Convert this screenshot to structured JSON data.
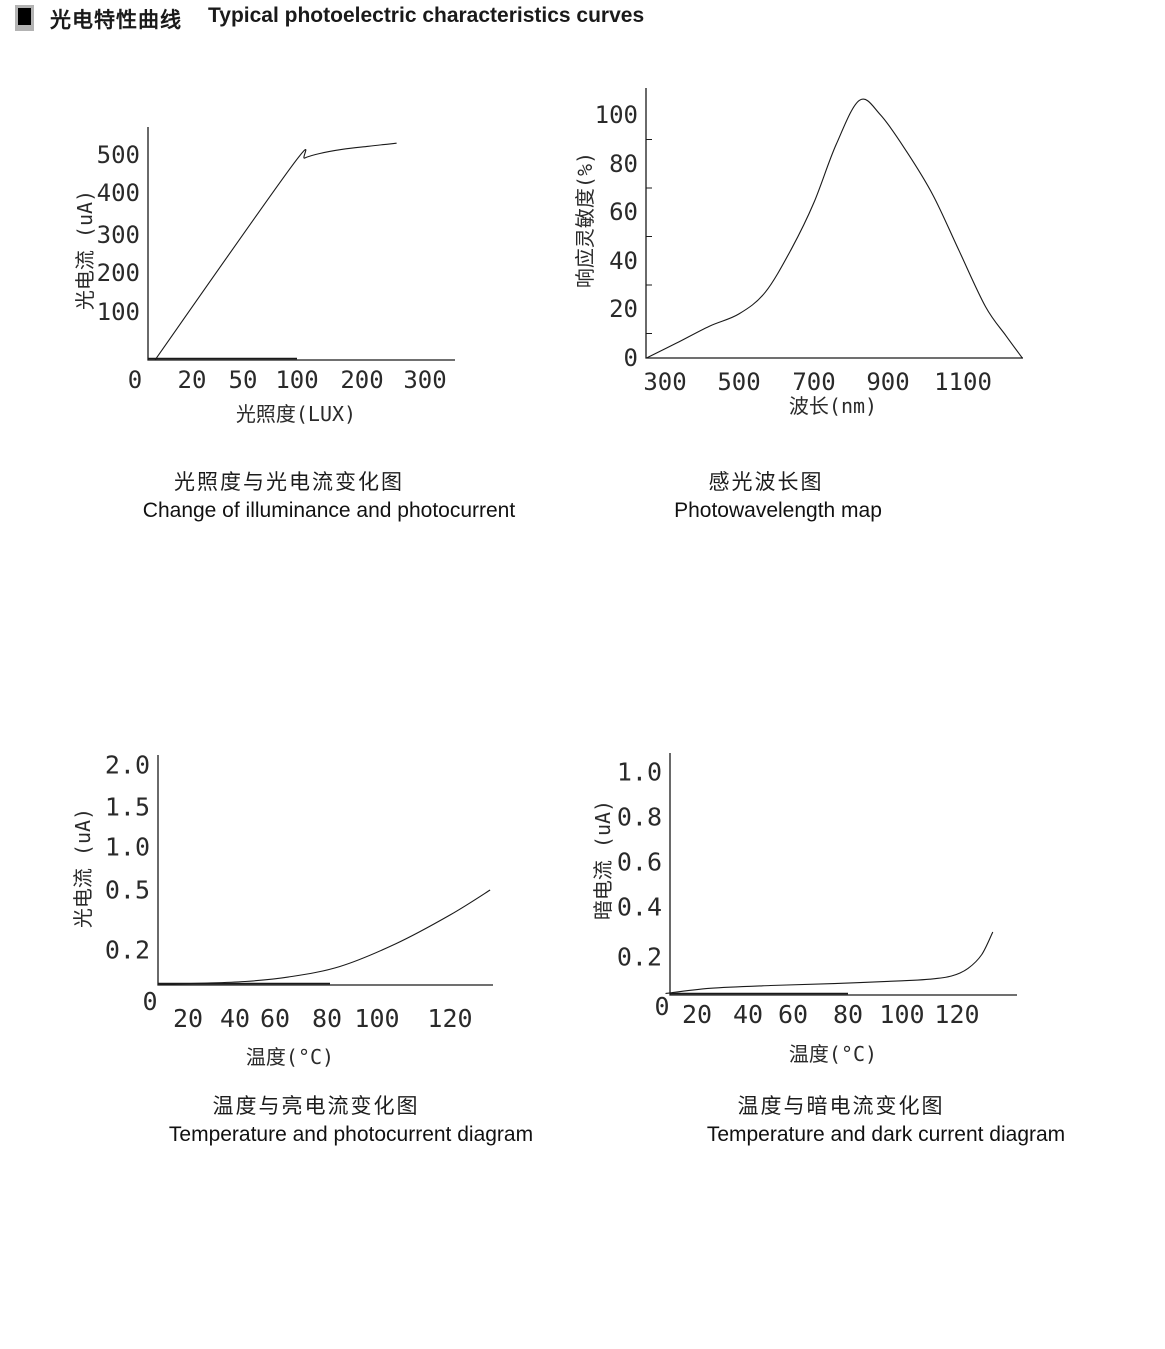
{
  "colors": {
    "ink": "#1a1a1a",
    "bullet_bg": "#b3b3b3",
    "bullet_fg": "#000000",
    "background": "#ffffff"
  },
  "header": {
    "bullet_icon": "black-square-bullet",
    "title_cn": "光电特性曲线",
    "title_en": "Typical photoelectric characteristics curves"
  },
  "chart_data": [
    {
      "type": "line",
      "id": "illuminance-photocurrent",
      "title_cn": "光照度与光电流变化图",
      "title_en": "Change of illuminance and photocurrent",
      "xlabel": "光照度(LUX)",
      "ylabel": "光电流 (uA)",
      "x_ticks": [
        0,
        20,
        50,
        100,
        200,
        300
      ],
      "x_tick_labels": [
        "0",
        "20",
        "50",
        "100",
        "200",
        "300"
      ],
      "y_ticks": [
        100,
        200,
        300,
        400,
        500
      ],
      "y_tick_labels": [
        "100",
        "200",
        "300",
        "400",
        "500"
      ],
      "xlim": [
        0,
        330
      ],
      "ylim": [
        0,
        570
      ],
      "grid": false,
      "legend": "none",
      "axis_note": "tick labels evenly spaced, nonlinear x scale",
      "series": [
        {
          "name": "photocurrent",
          "points": [
            [
              7,
              0
            ],
            [
              95,
              470
            ],
            [
              112,
              492
            ],
            [
              135,
              504
            ],
            [
              170,
              515
            ],
            [
              210,
              523
            ],
            [
              255,
              531
            ]
          ]
        }
      ]
    },
    {
      "type": "line",
      "id": "spectral-response",
      "title_cn": "感光波长图",
      "title_en": "Photowavelength map",
      "xlabel": "波长(nm)",
      "ylabel": "响应灵敏度(%)",
      "x_ticks": [
        300,
        500,
        700,
        900,
        1100
      ],
      "x_tick_labels": [
        "300",
        "500",
        "700",
        "900",
        "1100"
      ],
      "y_ticks": [
        0,
        20,
        40,
        60,
        80,
        100
      ],
      "y_tick_labels": [
        "0",
        "20",
        "40",
        "60",
        "80",
        "100"
      ],
      "xlim": [
        250,
        1260
      ],
      "ylim": [
        0,
        110
      ],
      "grid": false,
      "legend": "none",
      "series": [
        {
          "name": "relative-sensitivity",
          "points": [
            [
              250,
              0
            ],
            [
              330,
              6
            ],
            [
              420,
              13
            ],
            [
              500,
              18
            ],
            [
              570,
              27
            ],
            [
              640,
              45
            ],
            [
              700,
              64
            ],
            [
              760,
              88
            ],
            [
              823,
              106
            ],
            [
              880,
              100
            ],
            [
              950,
              85
            ],
            [
              1020,
              67
            ],
            [
              1090,
              44
            ],
            [
              1160,
              21
            ],
            [
              1215,
              9
            ],
            [
              1258,
              0
            ]
          ]
        }
      ]
    },
    {
      "type": "line",
      "id": "temperature-photocurrent",
      "title_cn": "温度与亮电流变化图",
      "title_en": "Temperature and photocurrent diagram",
      "xlabel": "温度(°C)",
      "ylabel": "光电流 (uA)",
      "x_ticks": [
        0,
        20,
        40,
        60,
        80,
        100,
        120
      ],
      "x_tick_labels": [
        "0",
        "20",
        "40",
        "60",
        "80",
        "100",
        "120"
      ],
      "y_ticks": [
        0.2,
        0.5,
        1.0,
        1.5,
        2.0
      ],
      "y_tick_labels": [
        "0.2",
        "0.5",
        "1.0",
        "1.5",
        "2.0"
      ],
      "xlim": [
        0,
        131
      ],
      "ylim": [
        0,
        2.0
      ],
      "grid": false,
      "legend": "none",
      "series": [
        {
          "name": "light-current",
          "points": [
            [
              5,
              0.004
            ],
            [
              25,
              0.01
            ],
            [
              45,
              0.02
            ],
            [
              65,
              0.045
            ],
            [
              85,
              0.105
            ],
            [
              105,
              0.23
            ],
            [
              120,
              0.375
            ],
            [
              131,
              0.5
            ]
          ]
        }
      ]
    },
    {
      "type": "line",
      "id": "temperature-darkcurrent",
      "title_cn": "温度与暗电流变化图",
      "title_en": "Temperature and dark current diagram",
      "xlabel": "温度(°C)",
      "ylabel": "暗电流 (uA)",
      "x_ticks": [
        0,
        20,
        40,
        60,
        80,
        100,
        120
      ],
      "x_tick_labels": [
        "0",
        "20",
        "40",
        "60",
        "80",
        "100",
        "120"
      ],
      "y_ticks": [
        0.2,
        0.4,
        0.6,
        0.8,
        1.0
      ],
      "y_tick_labels": [
        "0.2",
        "0.4",
        "0.6",
        "0.8",
        "1.0"
      ],
      "xlim": [
        0,
        133
      ],
      "ylim": [
        0,
        1.0
      ],
      "grid": false,
      "legend": "none",
      "series": [
        {
          "name": "dark-current",
          "points": [
            [
              2,
              0.008
            ],
            [
              25,
              0.035
            ],
            [
              50,
              0.05
            ],
            [
              75,
              0.06
            ],
            [
              100,
              0.075
            ],
            [
              110,
              0.083
            ],
            [
              118,
              0.1
            ],
            [
              124,
              0.14
            ],
            [
              129,
              0.21
            ],
            [
              133,
              0.3
            ]
          ]
        }
      ]
    }
  ]
}
